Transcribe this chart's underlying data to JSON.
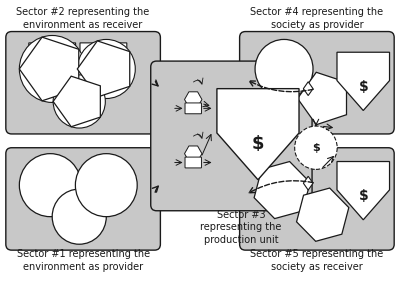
{
  "bg_color": "#ffffff",
  "box_fill": "#c8c8c8",
  "box_edge": "#333333",
  "white": "#ffffff",
  "dark": "#1a1a1a",
  "sector2_label": "Sector #2 representing the\nenvironment as receiver",
  "sector4_label": "Sector #4 representing the\nsociety as provider",
  "sector1_label": "Sector #1 representing the\nenvironment as provider",
  "sector5_label": "Sector #5 representing the\nsociety as receiver",
  "sector3_label": "Sector #3\nrepresenting the\nproduction unit",
  "font_size_label": 7.0,
  "font_size_dollar_big": 10,
  "font_size_dollar_small": 8
}
